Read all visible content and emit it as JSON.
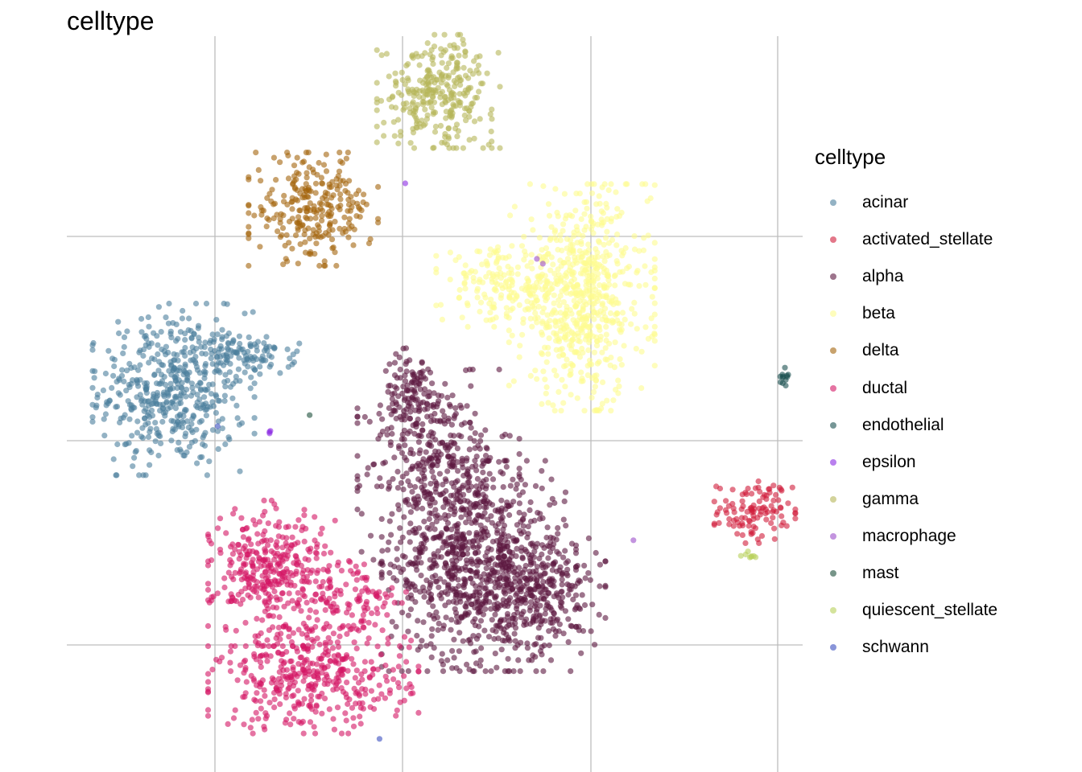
{
  "chart_data": {
    "type": "scatter",
    "title": "celltype",
    "xlabel": "",
    "ylabel": "",
    "xlim": [
      0,
      100
    ],
    "ylim": [
      0,
      100
    ],
    "grid": true,
    "legend_title": "celltype",
    "legend_position": "right",
    "series": [
      {
        "name": "acinar",
        "color": "#4b7e9c",
        "clusters": [
          {
            "cx": 14.5,
            "cy": 52,
            "sx": 5,
            "sy": 5.3,
            "n": 480
          },
          {
            "cx": 25,
            "cy": 56.5,
            "sx": 3,
            "sy": 1.3,
            "n": 90
          }
        ]
      },
      {
        "name": "activated_stellate",
        "color": "#d01c3a",
        "clusters": [
          {
            "cx": 93.5,
            "cy": 35.5,
            "sx": 2.5,
            "sy": 2,
            "n": 110
          }
        ]
      },
      {
        "name": "alpha",
        "color": "#5c1840",
        "clusters": [
          {
            "cx": 50.5,
            "cy": 41.5,
            "sx": 5,
            "sy": 6,
            "n": 350
          },
          {
            "cx": 56,
            "cy": 28,
            "sx": 6,
            "sy": 6.5,
            "n": 850
          },
          {
            "cx": 65.5,
            "cy": 24,
            "sx": 3.5,
            "sy": 4,
            "n": 200
          },
          {
            "cx": 47,
            "cy": 51,
            "sx": 2,
            "sy": 3,
            "n": 120
          }
        ]
      },
      {
        "name": "beta",
        "color": "#fefb90",
        "clusters": [
          {
            "cx": 70,
            "cy": 64.5,
            "sx": 4.5,
            "sy": 7,
            "n": 650
          },
          {
            "cx": 59,
            "cy": 66,
            "sx": 4,
            "sy": 2.5,
            "n": 160
          }
        ]
      },
      {
        "name": "delta",
        "color": "#a4640c",
        "clusters": [
          {
            "cx": 33.5,
            "cy": 76.5,
            "sx": 4,
            "sy": 3.5,
            "n": 260
          }
        ]
      },
      {
        "name": "ductal",
        "color": "#d31664",
        "clusters": [
          {
            "cx": 28,
            "cy": 27,
            "sx": 4,
            "sy": 4.5,
            "n": 380
          },
          {
            "cx": 33.5,
            "cy": 12.5,
            "sx": 6.5,
            "sy": 3.3,
            "n": 380
          },
          {
            "cx": 39.5,
            "cy": 23,
            "sx": 3,
            "sy": 3,
            "n": 100
          }
        ]
      },
      {
        "name": "endothelial",
        "color": "#1b5050",
        "clusters": [
          {
            "cx": 97.5,
            "cy": 53.3,
            "sx": 0.35,
            "sy": 0.9,
            "n": 12
          }
        ]
      },
      {
        "name": "epsilon",
        "color": "#8a2be2",
        "clusters": [
          {
            "cx": 46,
            "cy": 80,
            "sx": 0.2,
            "sy": 0.2,
            "n": 1
          },
          {
            "cx": 27.5,
            "cy": 46.2,
            "sx": 0.3,
            "sy": 0.3,
            "n": 3
          }
        ]
      },
      {
        "name": "gamma",
        "color": "#b6b658",
        "clusters": [
          {
            "cx": 50.5,
            "cy": 92.5,
            "sx": 3.8,
            "sy": 3.5,
            "n": 300
          }
        ]
      },
      {
        "name": "macrophage",
        "color": "#9b4dca",
        "clusters": [
          {
            "cx": 77,
            "cy": 31.5,
            "sx": 0.2,
            "sy": 0.2,
            "n": 1
          },
          {
            "cx": 64,
            "cy": 69.5,
            "sx": 0.4,
            "sy": 0.4,
            "n": 2
          }
        ]
      },
      {
        "name": "mast",
        "color": "#1d4e3a",
        "clusters": [
          {
            "cx": 33,
            "cy": 48.5,
            "sx": 0.2,
            "sy": 0.2,
            "n": 1
          }
        ]
      },
      {
        "name": "quiescent_stellate",
        "color": "#b8d15a",
        "clusters": [
          {
            "cx": 92.5,
            "cy": 29.5,
            "sx": 0.7,
            "sy": 0.3,
            "n": 8
          }
        ]
      },
      {
        "name": "schwann",
        "color": "#3a4fbf",
        "clusters": [
          {
            "cx": 42.5,
            "cy": 4.5,
            "sx": 0.2,
            "sy": 0.2,
            "n": 1
          },
          {
            "cx": 20.5,
            "cy": 47,
            "sx": 0.2,
            "sy": 0.2,
            "n": 1
          }
        ]
      }
    ]
  }
}
